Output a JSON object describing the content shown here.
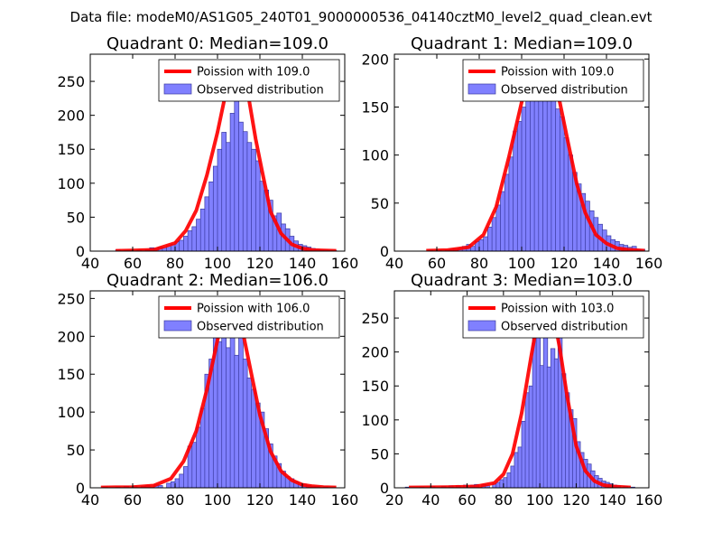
{
  "figure": {
    "suptitle": "Data file: modeM0/AS1G05_240T01_9000000536_04140cztM0_level2_quad_clean.evt"
  },
  "colors": {
    "bar_fill": "#8080ff",
    "bar_edge": "#3a3aa0",
    "curve": "#ff0000",
    "axis": "#000000",
    "background": "#ffffff"
  },
  "chart_data": [
    {
      "type": "bar",
      "title": "Quadrant 0: Median=109.0",
      "median": 109.0,
      "xlim": [
        40,
        160
      ],
      "ylim": [
        0,
        290
      ],
      "xticks": [
        40,
        60,
        80,
        100,
        120,
        140,
        160
      ],
      "yticks": [
        0,
        50,
        100,
        150,
        200,
        250
      ],
      "bin_width": 2.1,
      "bins": [
        [
          52,
          2
        ],
        [
          56,
          1
        ],
        [
          58,
          1
        ],
        [
          62,
          1
        ],
        [
          66,
          2
        ],
        [
          68,
          5
        ],
        [
          70,
          4
        ],
        [
          72,
          6
        ],
        [
          74,
          5
        ],
        [
          76,
          8
        ],
        [
          78,
          10
        ],
        [
          80,
          14
        ],
        [
          82,
          16
        ],
        [
          84,
          22
        ],
        [
          86,
          30
        ],
        [
          88,
          36
        ],
        [
          90,
          47
        ],
        [
          92,
          62
        ],
        [
          94,
          80
        ],
        [
          96,
          102
        ],
        [
          98,
          125
        ],
        [
          100,
          150
        ],
        [
          102,
          175
        ],
        [
          104,
          160
        ],
        [
          106,
          203
        ],
        [
          108,
          225
        ],
        [
          110,
          190
        ],
        [
          112,
          176
        ],
        [
          114,
          160
        ],
        [
          116,
          150
        ],
        [
          118,
          133
        ],
        [
          120,
          103
        ],
        [
          122,
          90
        ],
        [
          124,
          75
        ],
        [
          126,
          52
        ],
        [
          128,
          56
        ],
        [
          130,
          40
        ],
        [
          132,
          33
        ],
        [
          134,
          22
        ],
        [
          136,
          15
        ],
        [
          138,
          10
        ],
        [
          140,
          8
        ],
        [
          142,
          6
        ],
        [
          144,
          4
        ],
        [
          146,
          3
        ],
        [
          148,
          2
        ],
        [
          150,
          2
        ],
        [
          152,
          1
        ],
        [
          154,
          1
        ]
      ],
      "curve": {
        "x": [
          52,
          60,
          70,
          80,
          85,
          90,
          95,
          100,
          103,
          106,
          109,
          112,
          115,
          118,
          121,
          125,
          130,
          135,
          140,
          145,
          150,
          156
        ],
        "y": [
          0.5,
          1,
          2,
          12,
          30,
          60,
          112,
          175,
          220,
          262,
          278,
          262,
          220,
          165,
          118,
          58,
          26,
          10,
          4,
          1.5,
          1,
          0.5
        ]
      },
      "legend": {
        "position": "upper-right",
        "line": "Poission with 109.0",
        "bars": "Observed distribution"
      }
    },
    {
      "type": "bar",
      "title": "Quadrant 1: Median=109.0",
      "median": 109.0,
      "xlim": [
        40,
        160
      ],
      "ylim": [
        0,
        205
      ],
      "xticks": [
        40,
        60,
        80,
        100,
        120,
        140,
        160
      ],
      "yticks": [
        0,
        50,
        100,
        150,
        200
      ],
      "bin_width": 2.1,
      "bins": [
        [
          56,
          1
        ],
        [
          60,
          1
        ],
        [
          64,
          1
        ],
        [
          66,
          2
        ],
        [
          68,
          2
        ],
        [
          70,
          3
        ],
        [
          72,
          5
        ],
        [
          74,
          7
        ],
        [
          76,
          5
        ],
        [
          78,
          10
        ],
        [
          80,
          12
        ],
        [
          82,
          15
        ],
        [
          84,
          25
        ],
        [
          86,
          35
        ],
        [
          88,
          48
        ],
        [
          90,
          62
        ],
        [
          92,
          80
        ],
        [
          94,
          98
        ],
        [
          96,
          125
        ],
        [
          98,
          135
        ],
        [
          100,
          150
        ],
        [
          102,
          170
        ],
        [
          104,
          165
        ],
        [
          106,
          180
        ],
        [
          108,
          175
        ],
        [
          110,
          165
        ],
        [
          112,
          172
        ],
        [
          114,
          160
        ],
        [
          116,
          148
        ],
        [
          118,
          140
        ],
        [
          120,
          118
        ],
        [
          122,
          100
        ],
        [
          124,
          82
        ],
        [
          126,
          70
        ],
        [
          128,
          60
        ],
        [
          130,
          52
        ],
        [
          132,
          42
        ],
        [
          134,
          35
        ],
        [
          136,
          28
        ],
        [
          138,
          22
        ],
        [
          140,
          16
        ],
        [
          142,
          12
        ],
        [
          144,
          10
        ],
        [
          146,
          7
        ],
        [
          148,
          6
        ],
        [
          150,
          4
        ],
        [
          152,
          5
        ],
        [
          154,
          2
        ],
        [
          156,
          2
        ]
      ],
      "curve": {
        "x": [
          55,
          65,
          75,
          82,
          88,
          94,
          100,
          104,
          109,
          114,
          118,
          122,
          126,
          130,
          135,
          140,
          145,
          150,
          158
        ],
        "y": [
          0.5,
          1,
          4,
          17,
          46,
          98,
          155,
          188,
          197,
          185,
          155,
          112,
          70,
          40,
          17,
          8,
          3,
          1.5,
          0.5
        ]
      },
      "legend": {
        "position": "upper-right",
        "line": "Poission with 109.0",
        "bars": "Observed distribution"
      }
    },
    {
      "type": "bar",
      "title": "Quadrant 2: Median=106.0",
      "median": 106.0,
      "xlim": [
        40,
        160
      ],
      "ylim": [
        0,
        260
      ],
      "xticks": [
        40,
        60,
        80,
        100,
        120,
        140,
        160
      ],
      "yticks": [
        0,
        50,
        100,
        150,
        200,
        250
      ],
      "bin_width": 2.1,
      "bins": [
        [
          46,
          1
        ],
        [
          52,
          1
        ],
        [
          56,
          2
        ],
        [
          60,
          2
        ],
        [
          64,
          2
        ],
        [
          66,
          3
        ],
        [
          70,
          4
        ],
        [
          72,
          3
        ],
        [
          76,
          6
        ],
        [
          78,
          8
        ],
        [
          80,
          12
        ],
        [
          82,
          18
        ],
        [
          84,
          28
        ],
        [
          86,
          55
        ],
        [
          88,
          60
        ],
        [
          90,
          80
        ],
        [
          92,
          105
        ],
        [
          94,
          150
        ],
        [
          96,
          170
        ],
        [
          98,
          207
        ],
        [
          100,
          193
        ],
        [
          102,
          220
        ],
        [
          104,
          185
        ],
        [
          106,
          212
        ],
        [
          108,
          175
        ],
        [
          110,
          200
        ],
        [
          112,
          170
        ],
        [
          114,
          145
        ],
        [
          116,
          130
        ],
        [
          118,
          112
        ],
        [
          120,
          100
        ],
        [
          122,
          78
        ],
        [
          124,
          58
        ],
        [
          126,
          42
        ],
        [
          128,
          32
        ],
        [
          130,
          22
        ],
        [
          132,
          15
        ],
        [
          134,
          12
        ],
        [
          136,
          8
        ],
        [
          138,
          6
        ],
        [
          140,
          5
        ],
        [
          142,
          3
        ],
        [
          144,
          2
        ],
        [
          146,
          2
        ],
        [
          150,
          1
        ]
      ],
      "curve": {
        "x": [
          45,
          60,
          70,
          78,
          84,
          90,
          95,
          100,
          103,
          106,
          109,
          112,
          116,
          120,
          125,
          130,
          135,
          140,
          145,
          150,
          156
        ],
        "y": [
          0.5,
          1,
          3,
          12,
          35,
          75,
          130,
          195,
          228,
          244,
          232,
          205,
          150,
          96,
          48,
          22,
          10,
          4,
          2,
          1,
          0.5
        ]
      },
      "legend": {
        "position": "upper-right",
        "line": "Poission with 106.0",
        "bars": "Observed distribution"
      }
    },
    {
      "type": "bar",
      "title": "Quadrant 3: Median=103.0",
      "median": 103.0,
      "xlim": [
        20,
        160
      ],
      "ylim": [
        0,
        290
      ],
      "xticks": [
        20,
        40,
        60,
        80,
        100,
        120,
        140,
        160
      ],
      "yticks": [
        0,
        50,
        100,
        150,
        200,
        250
      ],
      "bin_width": 2.3,
      "bins": [
        [
          26,
          1
        ],
        [
          34,
          1
        ],
        [
          40,
          2
        ],
        [
          46,
          2
        ],
        [
          50,
          3
        ],
        [
          54,
          3
        ],
        [
          58,
          4
        ],
        [
          62,
          4
        ],
        [
          64,
          5
        ],
        [
          68,
          5
        ],
        [
          70,
          4
        ],
        [
          74,
          6
        ],
        [
          76,
          8
        ],
        [
          78,
          12
        ],
        [
          80,
          15
        ],
        [
          82,
          22
        ],
        [
          84,
          32
        ],
        [
          86,
          52
        ],
        [
          88,
          60
        ],
        [
          90,
          98
        ],
        [
          92,
          140
        ],
        [
          94,
          150
        ],
        [
          96,
          225
        ],
        [
          98,
          240
        ],
        [
          100,
          180
        ],
        [
          102,
          262
        ],
        [
          104,
          178
        ],
        [
          106,
          205
        ],
        [
          108,
          190
        ],
        [
          110,
          230
        ],
        [
          112,
          168
        ],
        [
          114,
          140
        ],
        [
          116,
          115
        ],
        [
          118,
          102
        ],
        [
          120,
          68
        ],
        [
          122,
          52
        ],
        [
          124,
          42
        ],
        [
          126,
          35
        ],
        [
          128,
          25
        ],
        [
          130,
          18
        ],
        [
          132,
          14
        ],
        [
          134,
          10
        ],
        [
          136,
          8
        ],
        [
          138,
          6
        ],
        [
          140,
          4
        ],
        [
          142,
          3
        ],
        [
          146,
          2
        ],
        [
          150,
          1
        ]
      ],
      "curve": {
        "x": [
          28,
          50,
          65,
          75,
          80,
          85,
          90,
          95,
          99,
          103,
          107,
          111,
          115,
          120,
          125,
          130,
          135,
          140,
          150
        ],
        "y": [
          0.5,
          1,
          2,
          7,
          20,
          50,
          110,
          190,
          250,
          278,
          262,
          205,
          135,
          62,
          25,
          10,
          4,
          2,
          0.5
        ]
      },
      "legend": {
        "position": "upper-right",
        "line": "Poission with 103.0",
        "bars": "Observed distribution"
      }
    }
  ]
}
